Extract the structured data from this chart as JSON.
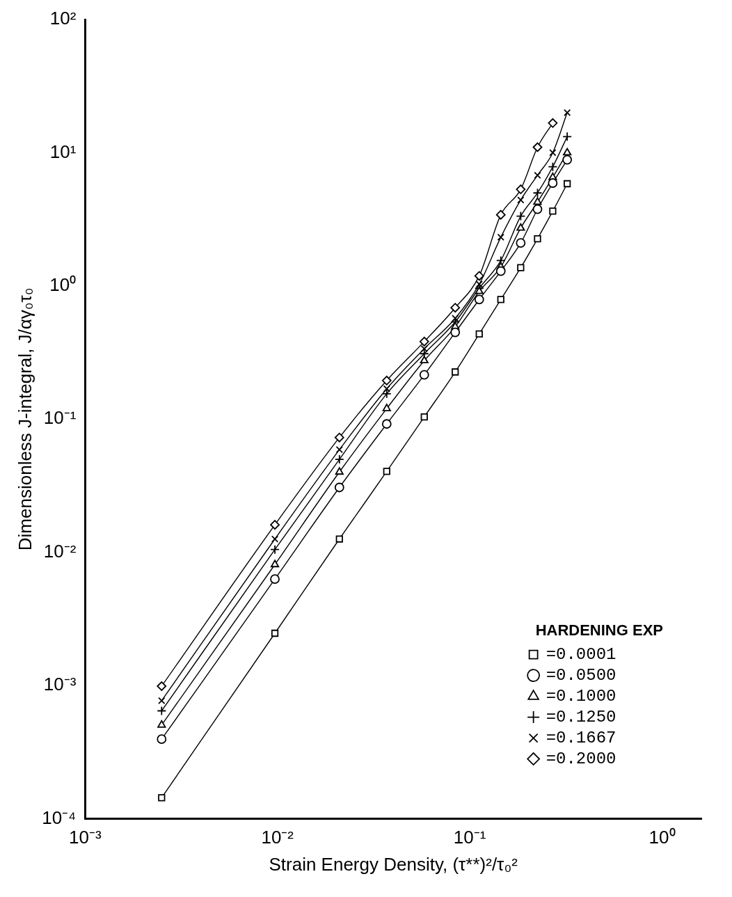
{
  "chart_data": {
    "type": "line",
    "xlabel": "Strain Energy Density, (τ**)²/τ₀²",
    "ylabel": "Dimensionless J-integral, J/αγ₀τ₀",
    "legend_title": "HARDENING EXP",
    "legend": "bottom right",
    "log": "xy",
    "grid": false,
    "line_style": "solid",
    "x": [
      0.0025,
      0.0097,
      0.021,
      0.037,
      0.058,
      0.084,
      0.112,
      0.145,
      0.184,
      0.225,
      0.27,
      0.321
    ],
    "xlim": [
      0.001,
      1.6
    ],
    "xticks": [
      {
        "value": 0.001,
        "label": "10⁻³"
      },
      {
        "value": 0.01,
        "label": "10⁻²"
      },
      {
        "value": 0.1,
        "label": "10⁻¹"
      },
      {
        "value": 1,
        "label": "10⁰"
      }
    ],
    "ylim": [
      0.0001,
      100
    ],
    "yticks": [
      {
        "value": 0.0001,
        "label": "10⁻⁴"
      },
      {
        "value": 0.001,
        "label": "10⁻³"
      },
      {
        "value": 0.01,
        "label": "10⁻²"
      },
      {
        "value": 0.1,
        "label": "10⁻¹"
      },
      {
        "value": 1,
        "label": "10⁰"
      },
      {
        "value": 10,
        "label": "10¹"
      },
      {
        "value": 100,
        "label": "10²"
      }
    ],
    "series": [
      {
        "name": "=0.0001",
        "color": "#000000",
        "marker": "square",
        "values": [
          0.000144,
          0.00247,
          0.0126,
          0.0405,
          0.104,
          0.226,
          0.436,
          0.79,
          1.37,
          2.26,
          3.64,
          5.85
        ]
      },
      {
        "name": "=0.0500",
        "color": "#000000",
        "marker": "circle",
        "values": [
          0.000396,
          0.0063,
          0.0307,
          0.092,
          0.215,
          0.448,
          0.79,
          1.29,
          2.1,
          3.77,
          5.92,
          8.85
        ]
      },
      {
        "name": "=0.1000",
        "color": "#000000",
        "marker": "triangle",
        "values": [
          0.000506,
          0.0081,
          0.0401,
          0.12,
          0.275,
          0.493,
          0.91,
          1.39,
          2.72,
          4.26,
          6.53,
          10.0
        ]
      },
      {
        "name": "=0.1250",
        "color": "#000000",
        "marker": "cross",
        "values": [
          0.000646,
          0.0105,
          0.0499,
          0.155,
          0.31,
          0.537,
          0.96,
          1.55,
          3.34,
          4.99,
          7.84,
          13.2
        ]
      },
      {
        "name": "=0.1667",
        "color": "#000000",
        "marker": "x",
        "values": [
          0.00077,
          0.0126,
          0.059,
          0.169,
          0.338,
          0.571,
          1.03,
          2.32,
          4.42,
          6.77,
          10.0,
          20.0
        ]
      },
      {
        "name": "=0.2000",
        "color": "#000000",
        "marker": "diamond",
        "values": [
          0.00099,
          0.0161,
          0.0728,
          0.195,
          0.382,
          0.686,
          1.19,
          3.42,
          5.31,
          11.0,
          16.7,
          null
        ]
      }
    ]
  }
}
